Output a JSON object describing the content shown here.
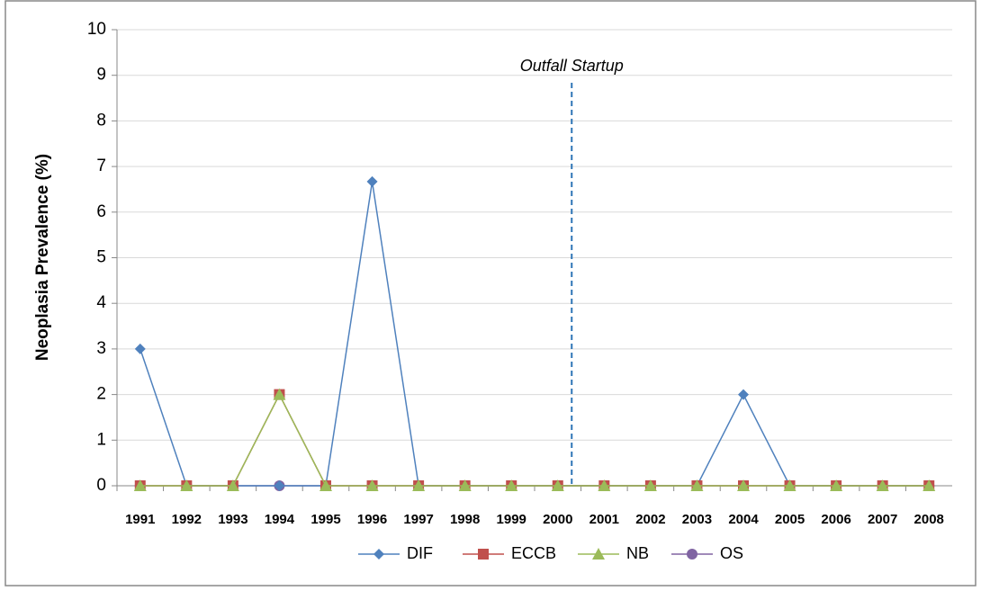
{
  "chart_data": {
    "type": "line",
    "y_label": "Neoplasia Prevalence (%)",
    "annotation": "Outfall Startup",
    "categories": [
      "1991",
      "1992",
      "1993",
      "1994",
      "1995",
      "1996",
      "1997",
      "1998",
      "1999",
      "2000",
      "2001",
      "2002",
      "2003",
      "2004",
      "2005",
      "2006",
      "2007",
      "2008"
    ],
    "series": [
      {
        "name": "DIF",
        "color": "#4f81bd",
        "marker": "diamond",
        "values": [
          3,
          0,
          0,
          0,
          0,
          6.67,
          0,
          0,
          0,
          0,
          0,
          0,
          0,
          2,
          0,
          0,
          0,
          0
        ]
      },
      {
        "name": "ECCB",
        "color": "#c0504d",
        "marker": "square",
        "values": [
          0,
          0,
          0,
          2,
          0,
          0,
          0,
          0,
          0,
          0,
          0,
          0,
          0,
          0,
          0,
          0,
          0,
          0
        ]
      },
      {
        "name": "NB",
        "color": "#9bbb59",
        "marker": "triangle",
        "values": [
          0,
          0,
          0,
          2,
          0,
          0,
          0,
          0,
          0,
          0,
          0,
          0,
          0,
          0,
          0,
          0,
          0,
          0
        ]
      },
      {
        "name": "OS",
        "color": "#8064a2",
        "marker": "circle",
        "values": [
          0,
          0,
          0,
          0,
          0,
          0,
          0,
          0,
          0,
          0,
          0,
          0,
          0,
          0,
          0,
          0,
          0,
          0
        ]
      }
    ],
    "ylim": [
      0,
      10
    ],
    "yticks": [
      0,
      1,
      2,
      3,
      4,
      5,
      6,
      7,
      8,
      9,
      10
    ],
    "grid": true,
    "legend": "bottom"
  }
}
